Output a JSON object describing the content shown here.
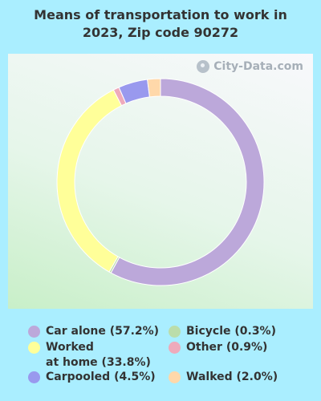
{
  "title_line1": "Means of transportation to work in",
  "title_line2": "2023, Zip code 90272",
  "watermark": "City-Data.com",
  "chart_data": {
    "type": "pie",
    "title": "Means of transportation to work in 2023, Zip code 90272",
    "series": [
      {
        "name": "Car alone",
        "value": 57.2,
        "label": "Car alone (57.2%)",
        "color": "#bca8da"
      },
      {
        "name": "Worked at home",
        "value": 33.8,
        "label": "Worked\nat home (33.8%)",
        "color": "#ffff99"
      },
      {
        "name": "Carpooled",
        "value": 4.5,
        "label": "Carpooled (4.5%)",
        "color": "#9999ee"
      },
      {
        "name": "Bicycle",
        "value": 0.3,
        "label": "Bicycle (0.3%)",
        "color": "#bbddaa"
      },
      {
        "name": "Other",
        "value": 0.9,
        "label": "Other (0.9%)",
        "color": "#eeaabb"
      },
      {
        "name": "Walked",
        "value": 2.0,
        "label": "Walked (2.0%)",
        "color": "#ffd8aa"
      }
    ],
    "slice_order": [
      "Car alone",
      "Bicycle",
      "Worked at home",
      "Other",
      "Carpooled",
      "Walked"
    ],
    "legend_position": "bottom"
  }
}
